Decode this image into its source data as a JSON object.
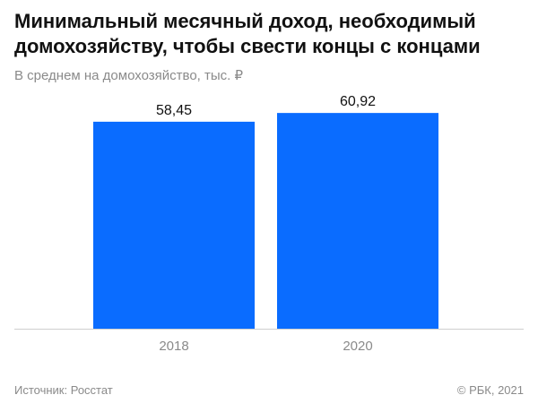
{
  "chart_data": {
    "type": "bar",
    "title": "Минимальный месячный доход, необходимый домохозяйству, чтобы свести концы с концами",
    "subtitle": "В среднем на домохозяйство, тыс. ₽",
    "categories": [
      "2018",
      "2020"
    ],
    "values": [
      58.45,
      60.92
    ],
    "value_labels": [
      "58,45",
      "60,92"
    ],
    "ylim": [
      0,
      65
    ],
    "grid": false,
    "bar_color": "#0a6cff",
    "baseline_color": "#cfcfcf"
  },
  "footer": {
    "source": "Источник: Росстат",
    "copyright": "© РБК, 2021"
  }
}
